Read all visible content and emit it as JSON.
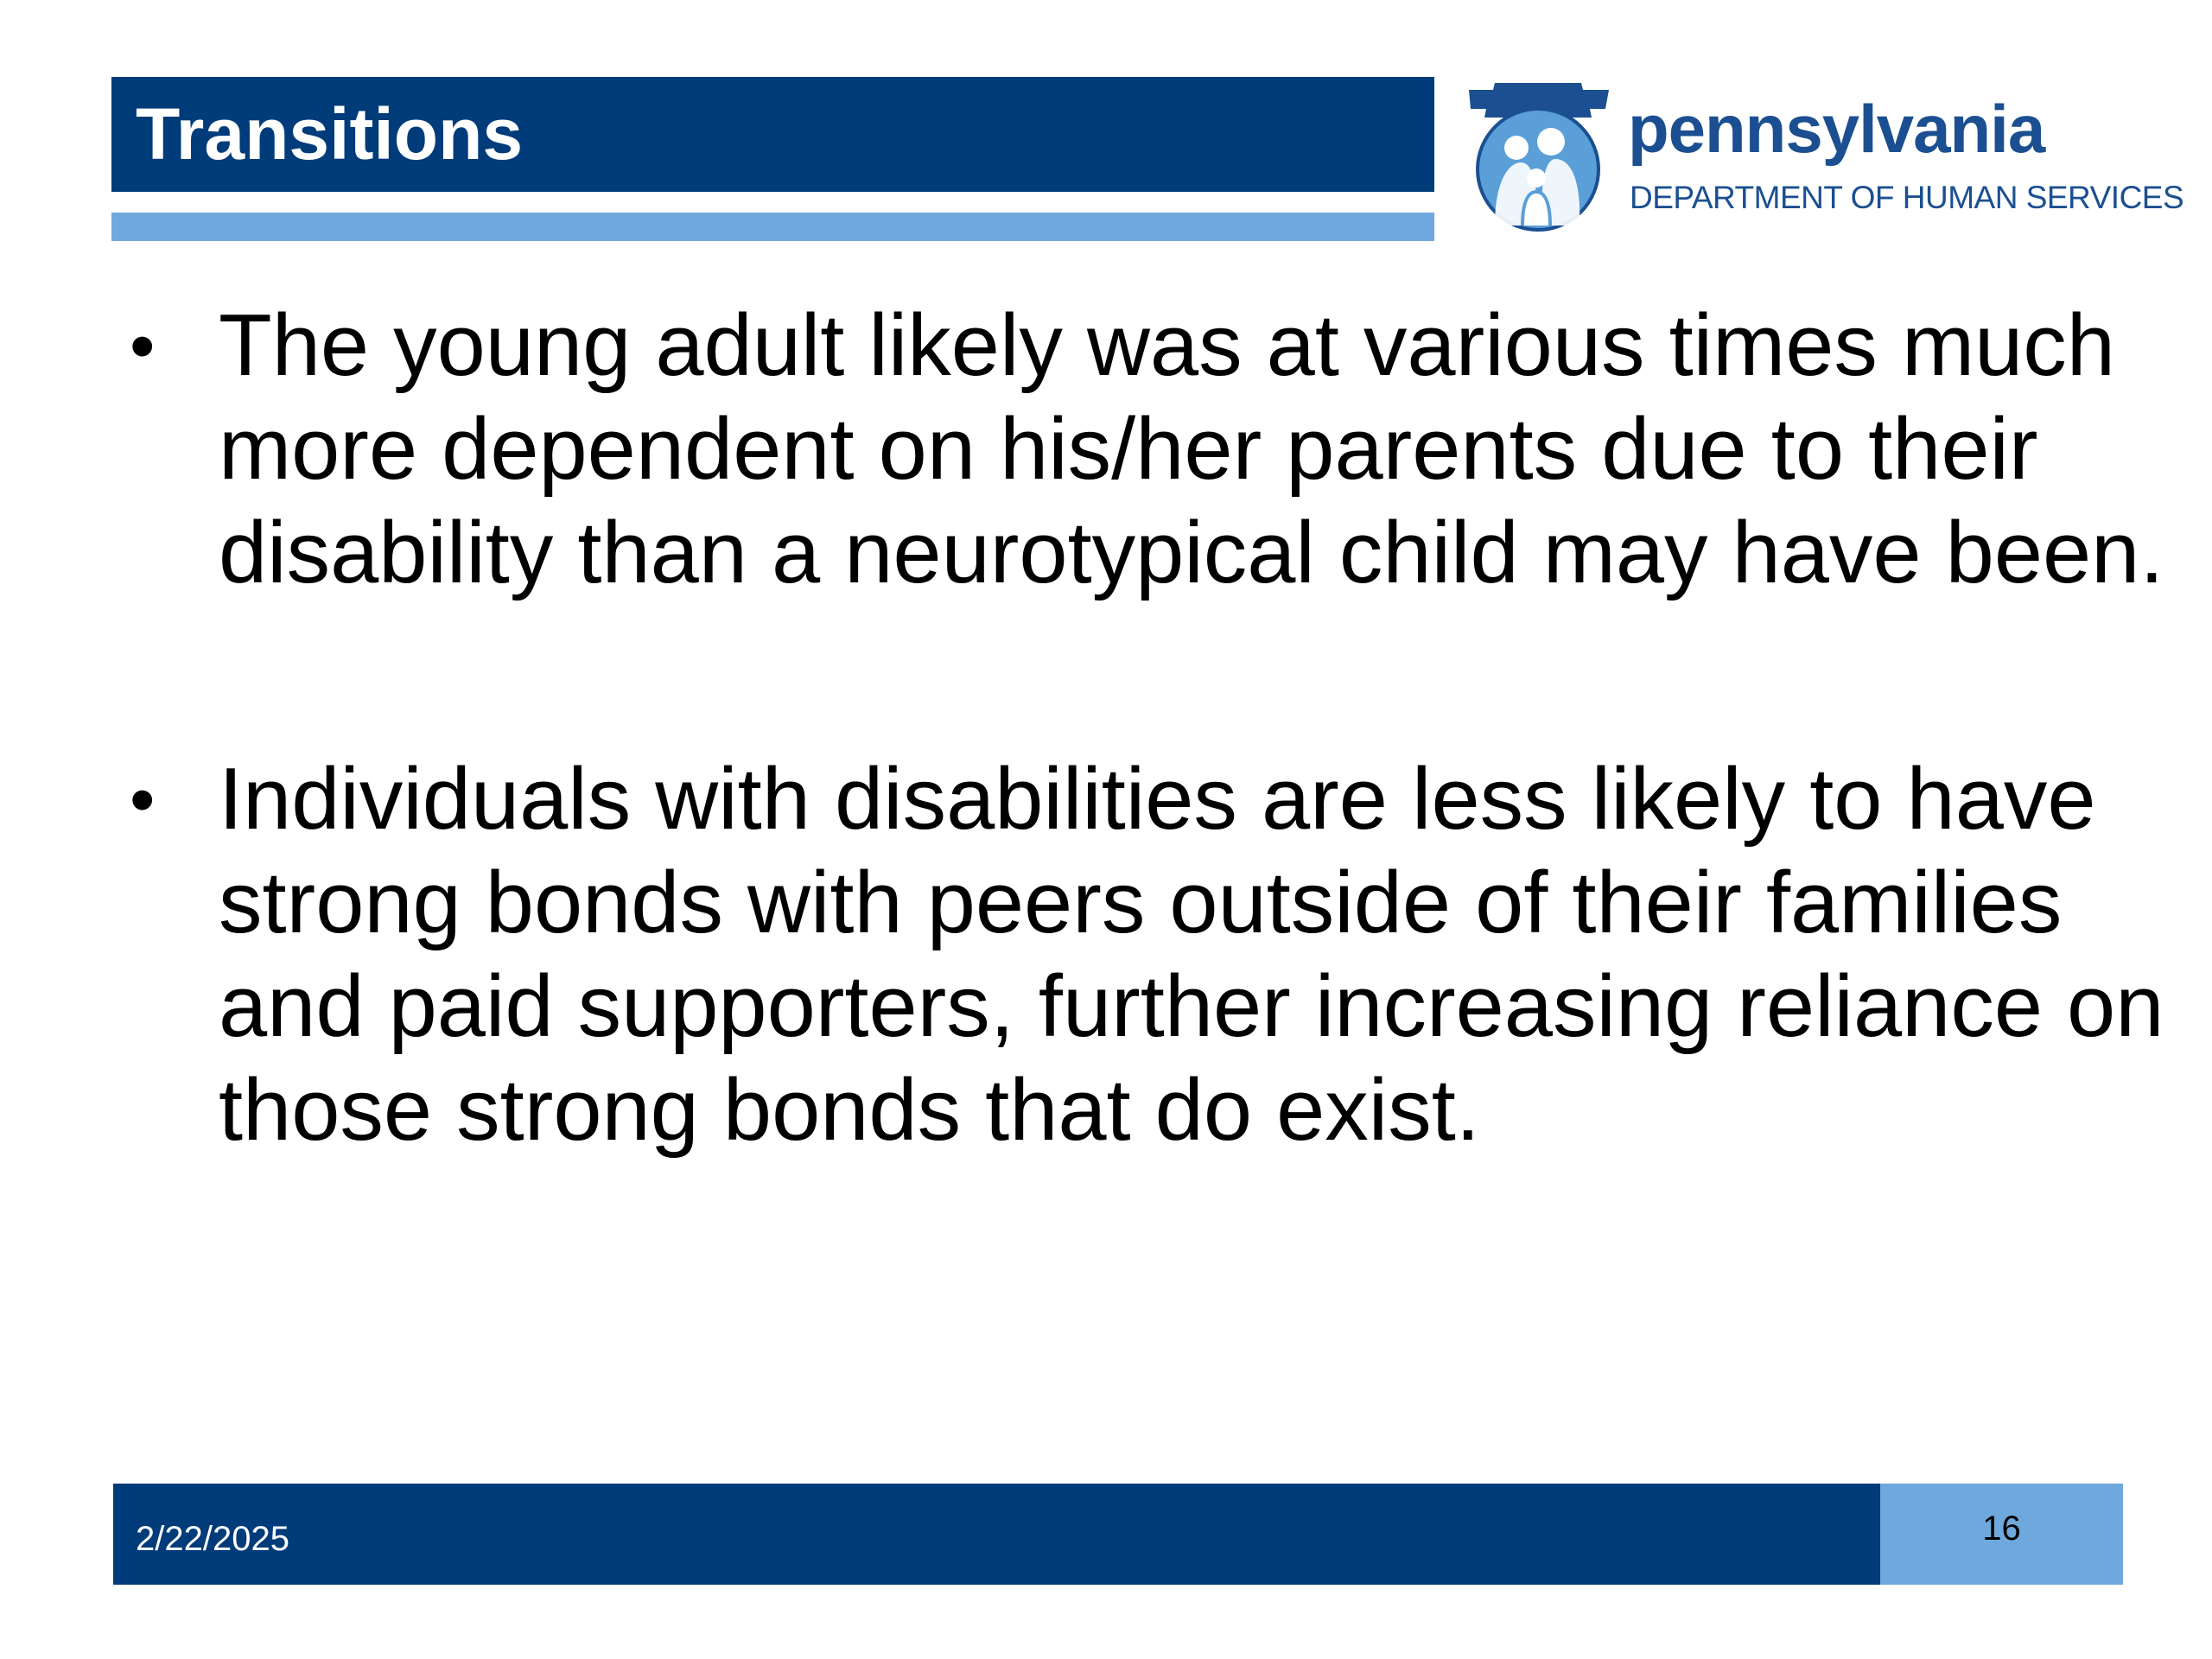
{
  "slide": {
    "title": "Transitions",
    "logo": {
      "state": "pennsylvania",
      "department": "DEPARTMENT OF HUMAN SERVICES",
      "icon": "pa-keystone-family-icon"
    },
    "bullets": [
      {
        "marker": "•",
        "text": "The young adult likely was at various times much more dependent on his/her parents due to their disability than a neurotypical child may have been."
      },
      {
        "marker": "•",
        "text": "Individuals with disabilities are less likely to have strong bonds with peers outside of their families and paid supporters, further increasing reliance on those strong bonds that do exist."
      }
    ],
    "footer": {
      "date": "2/22/2025",
      "page_number": "16"
    },
    "colors": {
      "primary": "#003b7a",
      "accent": "#6fa8dc",
      "logo_text": "#1b4f91"
    }
  }
}
